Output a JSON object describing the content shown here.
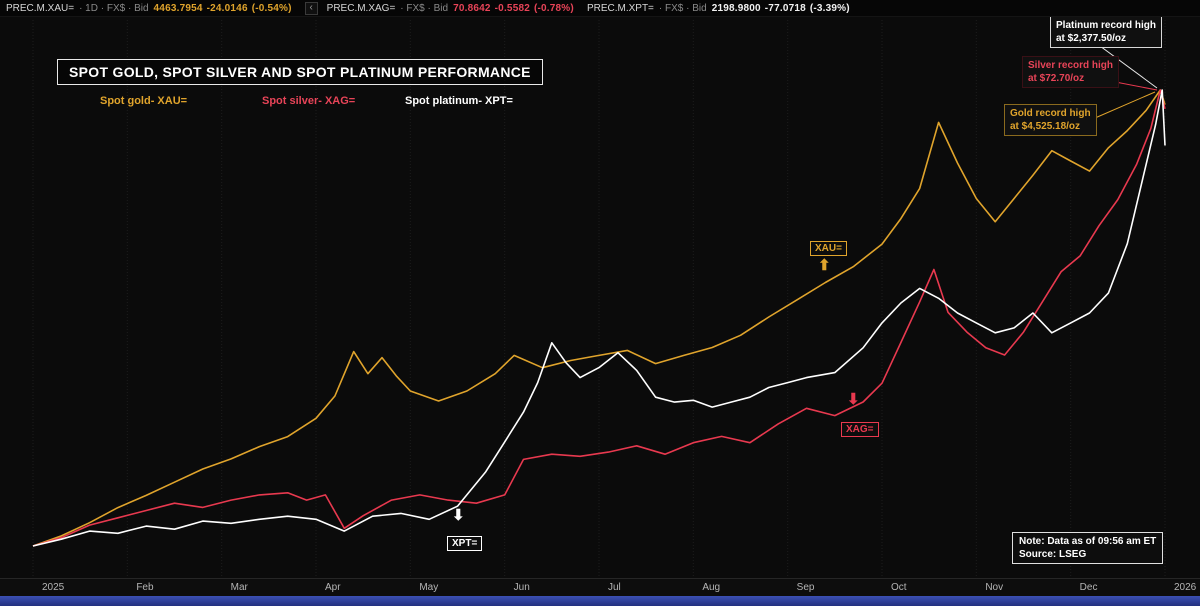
{
  "topbar": {
    "collapse_icon": "‹",
    "quotes": [
      {
        "instrument": "PREC.M.XAU=",
        "meta": "· 1D · FX$ · Bid",
        "price": "4463.7954",
        "change": "-24.0146",
        "pct": "(-0.54%)",
        "color": "#e0a42c"
      },
      {
        "instrument": "PREC.M.XAG=",
        "meta": "· FX$ · Bid",
        "price": "70.8642",
        "change": "-0.5582",
        "pct": "(-0.78%)",
        "color": "#e84458"
      },
      {
        "instrument": "PREC.M.XPT=",
        "meta": "· FX$ · Bid",
        "price": "2198.9800",
        "change": "-77.0718",
        "pct": "(-3.39%)",
        "color": "#f2f2f2"
      }
    ]
  },
  "title": "SPOT GOLD, SPOT SILVER AND SPOT PLATINUM PERFORMANCE",
  "legend": [
    {
      "label": "Spot gold- XAU=",
      "color": "#e0a42c"
    },
    {
      "label": "Spot silver- XAG=",
      "color": "#e84458"
    },
    {
      "label": "Spot platinum- XPT=",
      "color": "#ffffff"
    }
  ],
  "icons": {
    "up_arrow": "⬆",
    "down_arrow": "⬇"
  },
  "annotations": {
    "platinum_record": {
      "line1": "Platinum record high",
      "line2": "at $2,377.50/oz"
    },
    "silver_record": {
      "line1": "Silver record high",
      "line2": "at $72.70/oz"
    },
    "gold_record": {
      "line1": "Gold record high",
      "line2": "at $4,525.18/oz"
    },
    "xau_label": "XAU=",
    "xag_label": "XAG=",
    "xpt_label": "XPT=",
    "note_line1": "Note: Data as of 09:56 am ET",
    "note_line2": "Source: LSEG"
  },
  "chart_data": {
    "type": "line",
    "title": "SPOT GOLD, SPOT SILVER AND SPOT PLATINUM PERFORMANCE",
    "x_unit": "months since 2025-01-01",
    "x_range": [
      0,
      12
    ],
    "x_ticks": [
      "2025",
      "Feb",
      "Mar",
      "Apr",
      "May",
      "Jun",
      "Jul",
      "Aug",
      "Sep",
      "Oct",
      "Nov",
      "Dec",
      "2026"
    ],
    "grid": "faint vertical monthly gridlines, no y axis shown (each series on its own scale)",
    "legend_position": "top-left",
    "background": "#0b0b0b",
    "series": [
      {
        "name": "Spot gold XAU= (USD/oz)",
        "short": "xau",
        "color": "#e0a42c",
        "record_high": 4525.18,
        "last": 4463.7954,
        "x": [
          0,
          0.3,
          0.6,
          0.9,
          1.2,
          1.5,
          1.8,
          2.1,
          2.4,
          2.7,
          3.0,
          3.2,
          3.4,
          3.55,
          3.7,
          3.85,
          4.0,
          4.3,
          4.6,
          4.9,
          5.1,
          5.4,
          5.7,
          6.0,
          6.3,
          6.6,
          6.9,
          7.2,
          7.5,
          7.8,
          8.1,
          8.4,
          8.7,
          9.0,
          9.2,
          9.4,
          9.6,
          9.8,
          10.0,
          10.2,
          10.4,
          10.6,
          10.8,
          11.0,
          11.2,
          11.4,
          11.6,
          11.8,
          11.95,
          12.0
        ],
        "values": [
          2625,
          2667,
          2722,
          2785,
          2836,
          2891,
          2946,
          2988,
          3039,
          3081,
          3157,
          3250,
          3435,
          3343,
          3410,
          3334,
          3271,
          3229,
          3271,
          3343,
          3419,
          3368,
          3398,
          3419,
          3440,
          3385,
          3419,
          3452,
          3503,
          3579,
          3651,
          3723,
          3790,
          3883,
          3989,
          4115,
          4390,
          4221,
          4073,
          3976,
          4073,
          4170,
          4272,
          4229,
          4187,
          4284,
          4356,
          4440,
          4525,
          4464
        ]
      },
      {
        "name": "Spot silver XAG= (USD/oz)",
        "short": "xag",
        "color": "#e8394f",
        "record_high": 72.7,
        "last": 70.8642,
        "x": [
          0,
          0.3,
          0.6,
          0.9,
          1.2,
          1.5,
          1.8,
          2.1,
          2.4,
          2.7,
          2.9,
          3.1,
          3.3,
          3.5,
          3.8,
          4.1,
          4.4,
          4.7,
          5.0,
          5.2,
          5.5,
          5.8,
          6.1,
          6.4,
          6.7,
          7.0,
          7.3,
          7.6,
          7.9,
          8.2,
          8.5,
          8.8,
          9.0,
          9.2,
          9.4,
          9.55,
          9.7,
          9.9,
          10.1,
          10.3,
          10.5,
          10.7,
          10.9,
          11.1,
          11.3,
          11.5,
          11.7,
          11.85,
          11.95,
          12.0
        ],
        "values": [
          29.0,
          29.8,
          31.0,
          31.7,
          32.4,
          33.1,
          32.7,
          33.4,
          33.9,
          34.1,
          33.4,
          33.9,
          30.7,
          31.9,
          33.4,
          33.9,
          33.4,
          33.1,
          33.9,
          37.3,
          37.8,
          37.6,
          38.0,
          38.6,
          37.8,
          38.9,
          39.5,
          38.9,
          40.7,
          42.2,
          41.5,
          42.8,
          44.6,
          48.5,
          52.4,
          55.5,
          51.4,
          49.5,
          48.0,
          47.3,
          49.5,
          52.4,
          55.3,
          56.8,
          59.7,
          62.2,
          65.6,
          69.0,
          72.7,
          70.9
        ]
      },
      {
        "name": "Spot platinum XPT= (USD/oz)",
        "short": "xpt",
        "color": "#ffffff",
        "record_high": 2377.5,
        "last": 2198.98,
        "x": [
          0,
          0.3,
          0.6,
          0.9,
          1.2,
          1.5,
          1.8,
          2.1,
          2.4,
          2.7,
          3.0,
          3.3,
          3.6,
          3.9,
          4.2,
          4.5,
          4.8,
          5.0,
          5.2,
          5.35,
          5.5,
          5.65,
          5.8,
          6.0,
          6.2,
          6.4,
          6.6,
          6.8,
          7.0,
          7.2,
          7.4,
          7.6,
          7.8,
          8.0,
          8.2,
          8.5,
          8.8,
          9.0,
          9.2,
          9.4,
          9.6,
          9.8,
          10.0,
          10.2,
          10.4,
          10.6,
          10.8,
          11.0,
          11.2,
          11.4,
          11.6,
          11.75,
          11.9,
          11.97,
          12.0
        ],
        "values": [
          910,
          932,
          958,
          951,
          974,
          964,
          990,
          983,
          996,
          1006,
          996,
          958,
          1006,
          1015,
          996,
          1038,
          1149,
          1245,
          1341,
          1436,
          1564,
          1500,
          1452,
          1484,
          1532,
          1475,
          1389,
          1373,
          1379,
          1357,
          1373,
          1389,
          1420,
          1436,
          1452,
          1468,
          1548,
          1628,
          1692,
          1739,
          1707,
          1660,
          1628,
          1596,
          1612,
          1660,
          1596,
          1628,
          1660,
          1724,
          1883,
          2074,
          2266,
          2377.5,
          2199
        ]
      }
    ]
  }
}
